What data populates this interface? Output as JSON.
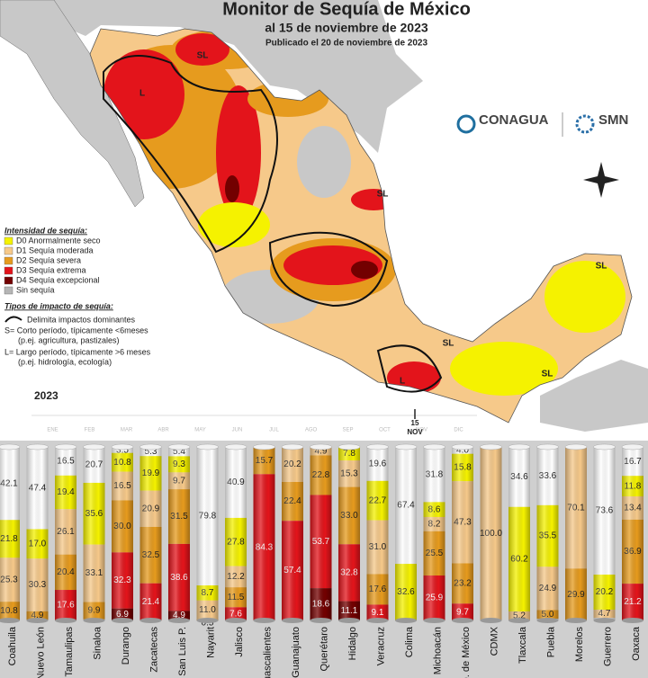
{
  "map": {
    "title": "Monitor de Sequía de México",
    "subtitle": "al 15 de noviembre de 2023",
    "published": "Publicado el 20 de noviembre de 2023",
    "agency_1": "CONAGUA",
    "agency_2": "SMN",
    "legend_title": "Intensidad de sequía:",
    "legend_items": [
      "D0 Anormalmente seco",
      "D1 Sequía moderada",
      "D2 Sequía severa",
      "D3 Sequía extrema",
      "D4 Sequía excepcional",
      "Sin sequía"
    ],
    "impact_title": "Tipos de impacto de sequía:",
    "impact_items": [
      "Delimita impactos dominantes",
      "S= Corto período, típicamente <6meses",
      "(p.ej. agricultura, pastizales)",
      "L= Largo período, típicamente >6 meses",
      "(p.ej. hidrología, ecología)"
    ],
    "zone_labels": [
      "SL",
      "L",
      "SL",
      "SL",
      "SL",
      "SL",
      "L"
    ],
    "year": "2023",
    "months": [
      "ENE",
      "FEB",
      "MAR",
      "ABR",
      "MAY",
      "JUN",
      "JUL",
      "AGO",
      "SEP",
      "OCT",
      "NOV",
      "DIC"
    ],
    "current_day": "15",
    "current_month": "NOV"
  },
  "chart_data": {
    "type": "stacked_bar",
    "categories": [
      "Coahuila",
      "Nuevo León",
      "Tamaulipas",
      "Sinaloa",
      "Durango",
      "Zacatecas",
      "San Luis P.",
      "Nayarit",
      "Jalisco",
      "Aguascalientes",
      "Guanajuato",
      "Querétaro",
      "Hidalgo",
      "Veracruz",
      "Colima",
      "Michoacán",
      "Edo. de México",
      "CDMX",
      "Tlaxcala",
      "Puebla",
      "Morelos",
      "Guerrero",
      "Oaxaca"
    ],
    "ylim": [
      0,
      100
    ],
    "series": [
      {
        "name": "Sin sequía",
        "color": "#ffffff",
        "values": [
          42.1,
          47.4,
          16.5,
          20.7,
          3.5,
          5.3,
          5.4,
          79.8,
          40.9,
          null,
          null,
          null,
          null,
          19.6,
          67.4,
          31.8,
          4.0,
          null,
          34.6,
          33.6,
          null,
          73.6,
          16.7
        ],
        "value_labels": [
          "42.1",
          "47.4",
          "16.5",
          "20.7",
          "3.5",
          "5.3",
          "5.4",
          "79.8",
          "40.9",
          null,
          null,
          null,
          null,
          "19.6",
          "67.4",
          "31.8",
          "4.0",
          null,
          "34.6",
          "33.6",
          null,
          "73.6",
          "16.7"
        ]
      },
      {
        "name": "D0 Anormalmente seco",
        "color": "#f5f200",
        "values": [
          21.8,
          17.0,
          19.4,
          35.6,
          10.8,
          19.9,
          9.3,
          8.7,
          27.8,
          null,
          null,
          null,
          7.8,
          22.7,
          32.6,
          8.6,
          15.8,
          null,
          60.2,
          35.5,
          null,
          20.2,
          11.8
        ],
        "value_labels": [
          "21.8",
          "17.0",
          "19.4",
          "35.6",
          "10.8",
          "19.9",
          "9.3",
          "8.7",
          "27.8",
          null,
          null,
          null,
          "7.8",
          "22.7",
          "32.6",
          "8.6",
          "15.8",
          null,
          "60.2",
          "35.5",
          null,
          "20.2",
          "11.8"
        ]
      },
      {
        "name": "D1 Sequía moderada",
        "color": "#f6c98a",
        "values": [
          25.3,
          30.3,
          26.1,
          33.1,
          16.5,
          20.9,
          9.7,
          11.0,
          12.2,
          null,
          20.2,
          4.9,
          15.3,
          31.0,
          null,
          8.2,
          47.3,
          100.0,
          5.2,
          24.9,
          70.1,
          4.7,
          13.4
        ],
        "value_labels": [
          "25.3",
          "30.3",
          "26.1",
          "33.1",
          "16.5",
          "20.9",
          "9.7",
          "11.0",
          "12.2",
          null,
          "20.2",
          "4.9",
          "15.3",
          "31.0",
          null,
          "8.2",
          "47.3",
          "100.0",
          "5.2",
          "24.9",
          "70.1",
          "4.7",
          "13.4"
        ]
      },
      {
        "name": "D2 Sequía severa",
        "color": "#e69b1e",
        "values": [
          10.8,
          4.9,
          20.4,
          9.9,
          30.0,
          32.5,
          31.5,
          0.5,
          11.5,
          15.7,
          22.4,
          22.8,
          33.0,
          17.6,
          null,
          25.5,
          23.2,
          null,
          null,
          5.0,
          29.9,
          null,
          36.9
        ],
        "value_labels": [
          "10.8",
          "4.9",
          "20.4",
          "9.9",
          "30.0",
          "32.5",
          "31.5",
          "0.5",
          "11.5",
          "15.7",
          "22.4",
          "22.8",
          "33.0",
          "17.6",
          null,
          "25.5",
          "23.2",
          null,
          null,
          "5.0",
          "29.9",
          null,
          "36.9"
        ]
      },
      {
        "name": "D3 Sequía extrema",
        "color": "#e3141b",
        "values": [
          null,
          null,
          17.6,
          null,
          32.3,
          21.4,
          38.6,
          null,
          7.6,
          84.3,
          57.4,
          53.7,
          32.8,
          9.1,
          null,
          25.9,
          9.7,
          null,
          null,
          null,
          null,
          null,
          21.2
        ],
        "value_labels": [
          null,
          null,
          "17.6",
          null,
          "32.3",
          "21.4",
          "38.6",
          null,
          "7.6",
          "84.3",
          "57.4",
          "53.7",
          "32.8",
          "9.1",
          null,
          "25.9",
          "9.7",
          null,
          null,
          null,
          null,
          null,
          "21.2"
        ]
      },
      {
        "name": "D4 Sequía excepcional",
        "color": "#730000",
        "values": [
          null,
          null,
          null,
          null,
          6.9,
          null,
          4.9,
          null,
          null,
          null,
          null,
          18.6,
          11.1,
          null,
          null,
          null,
          null,
          null,
          null,
          null,
          null,
          null,
          null
        ],
        "value_labels": [
          null,
          null,
          null,
          null,
          "6.9",
          null,
          "4.9",
          null,
          null,
          null,
          null,
          "18.6",
          "11.1",
          null,
          null,
          null,
          null,
          null,
          null,
          null,
          null,
          null,
          null
        ]
      }
    ]
  }
}
